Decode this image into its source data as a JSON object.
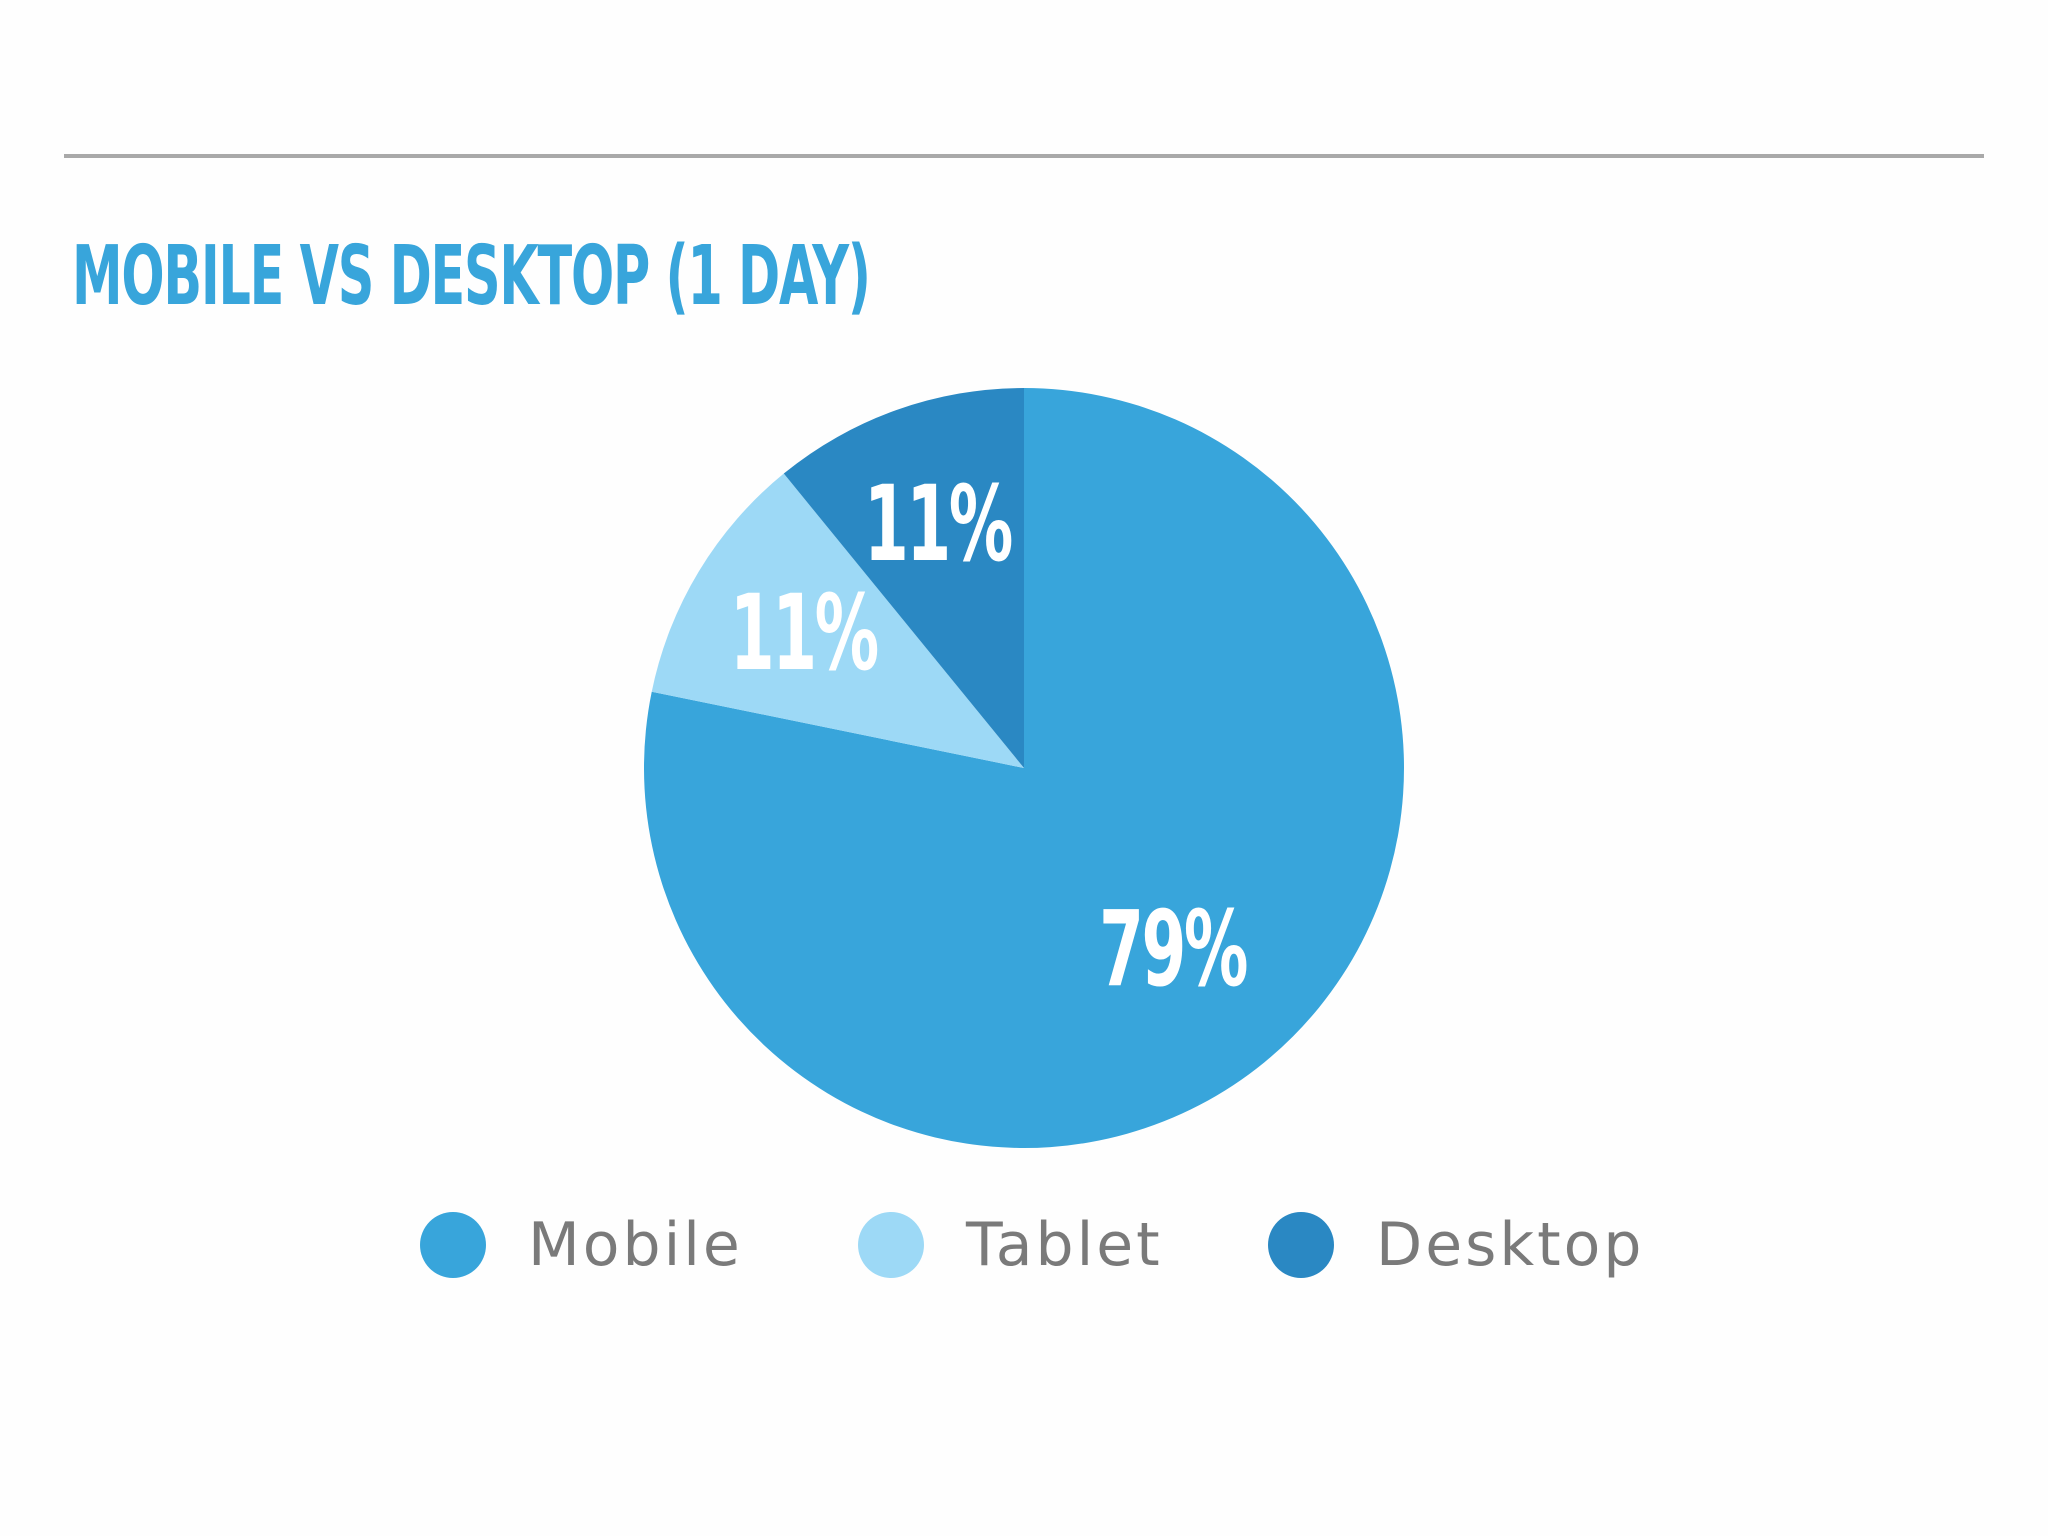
{
  "title": "MOBILE VS DESKTOP (1 DAY)",
  "colors": {
    "title": "#38a5db",
    "rule": "#a9a9a9",
    "label": "#ffffff",
    "legend_text": "#7a7a7a"
  },
  "chart_data": {
    "type": "pie",
    "title": "MOBILE VS DESKTOP (1 DAY)",
    "slices": [
      {
        "label": "Mobile",
        "value": 79,
        "display": "79%",
        "color": "#38a5db"
      },
      {
        "label": "Tablet",
        "value": 11,
        "display": "11%",
        "color": "#9dd9f6"
      },
      {
        "label": "Desktop",
        "value": 11,
        "display": "11%",
        "color": "#2a88c3"
      }
    ],
    "legend_placement": "bottom"
  }
}
